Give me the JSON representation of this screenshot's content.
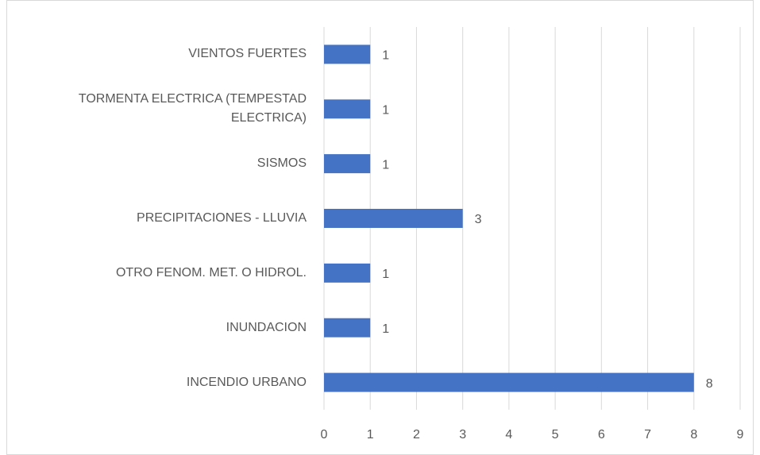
{
  "chart_data": {
    "type": "bar",
    "orientation": "horizontal",
    "categories": [
      "VIENTOS FUERTES",
      "TORMENTA ELECTRICA (TEMPESTAD ELECTRICA)",
      "SISMOS",
      "PRECIPITACIONES - LLUVIA",
      "OTRO FENOM. MET. O HIDROL.",
      "INUNDACION",
      "INCENDIO URBANO"
    ],
    "values": [
      1,
      1,
      1,
      3,
      1,
      1,
      8
    ],
    "color": "#4472c4",
    "xlim": [
      0,
      9
    ],
    "xticks": [
      0,
      1,
      2,
      3,
      4,
      5,
      6,
      7,
      8,
      9
    ],
    "grid": true
  }
}
